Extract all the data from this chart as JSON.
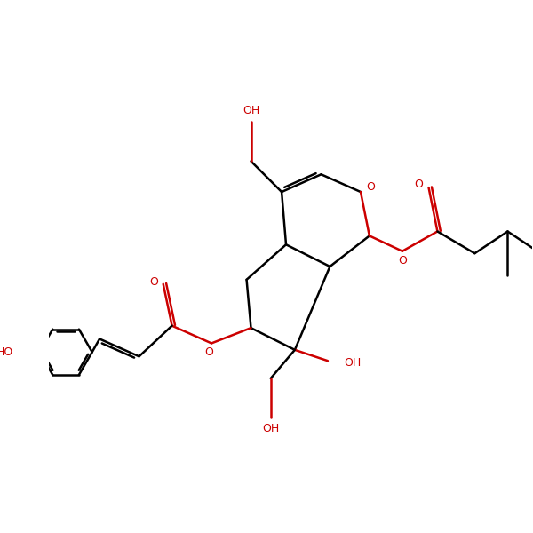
{
  "background": "#ffffff",
  "bond_color": "#000000",
  "oxygen_color": "#cc0000",
  "lw": 1.8,
  "fs": 9.0,
  "xlim": [
    -0.5,
    10.5
  ],
  "ylim": [
    0.5,
    9.5
  ]
}
